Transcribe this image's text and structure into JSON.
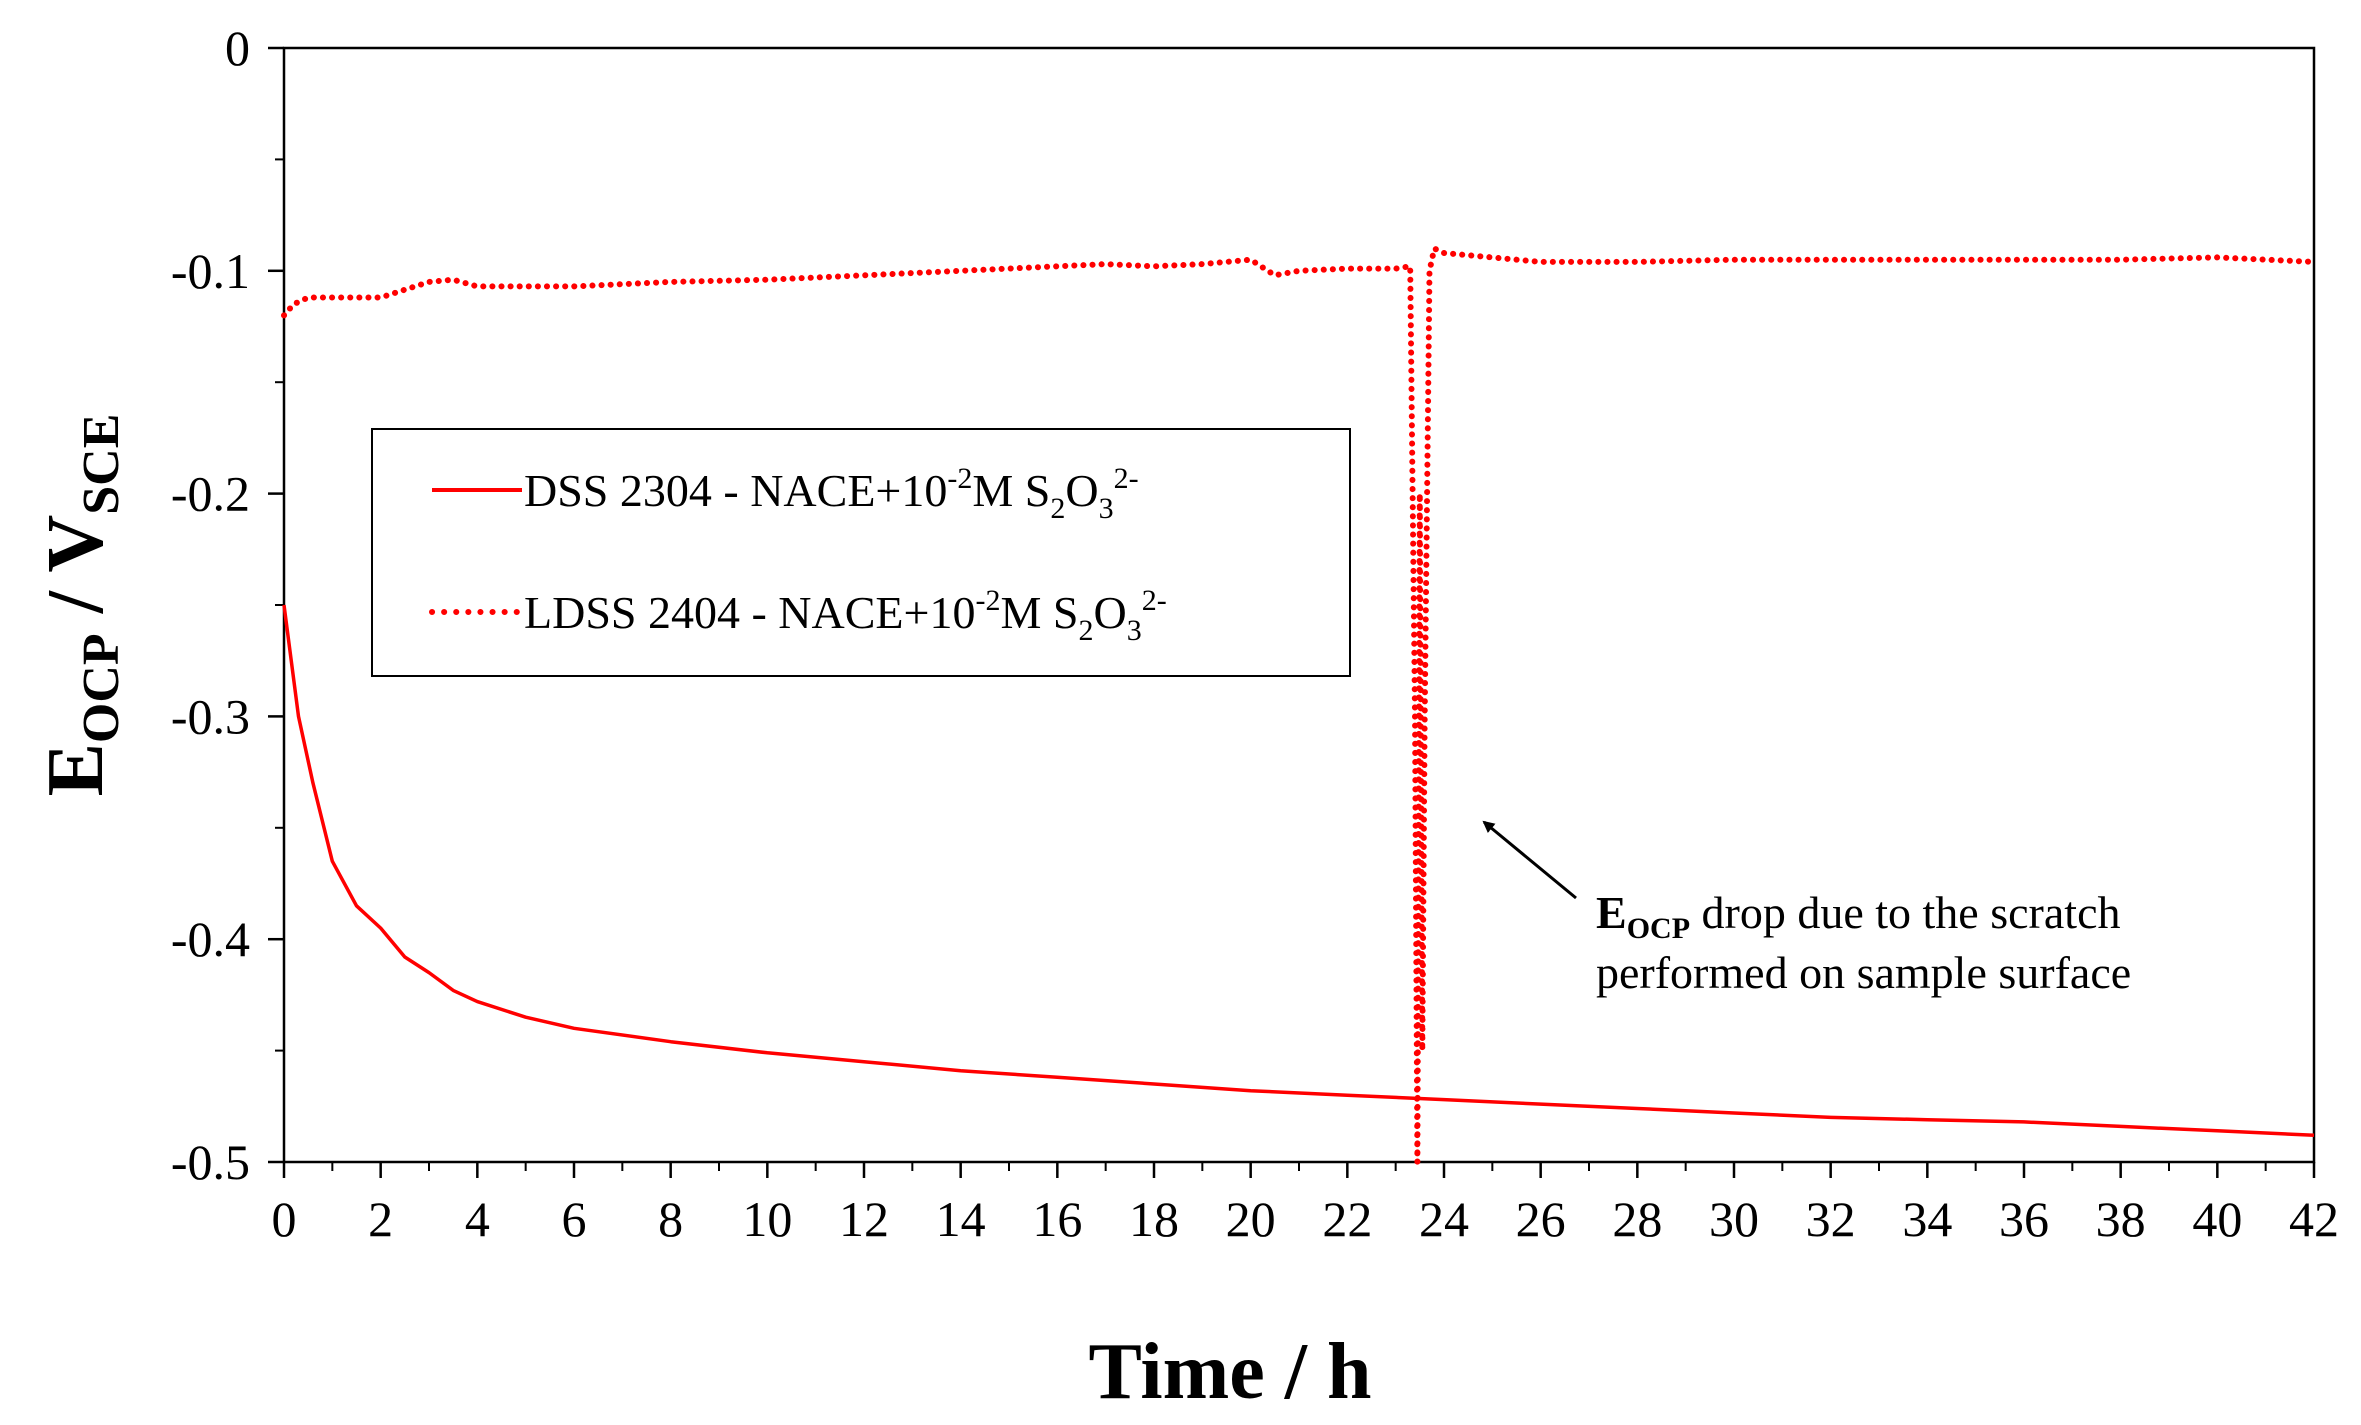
{
  "chart_data": {
    "type": "line",
    "title": "",
    "xlabel": "Time / h",
    "ylabel": {
      "main": "E",
      "sub1": "OCP",
      "mid": " / V",
      "sub2": "SCE"
    },
    "xlim": [
      0,
      42
    ],
    "ylim": [
      -0.5,
      0
    ],
    "x_ticks": [
      0,
      2,
      4,
      6,
      8,
      10,
      12,
      14,
      16,
      18,
      20,
      22,
      24,
      26,
      28,
      30,
      32,
      34,
      36,
      38,
      40,
      42
    ],
    "y_ticks": [
      0,
      -0.1,
      -0.2,
      -0.3,
      -0.4,
      -0.5
    ],
    "y_tick_labels": [
      "0",
      "-0.1",
      "-0.2",
      "-0.3",
      "-0.4",
      "-0.5"
    ],
    "grid": false,
    "series": [
      {
        "name": "DSS 2304 - NACE+10-2M S2O32-",
        "legend": {
          "p1": "DSS 2304 - NACE+10",
          "sup1": "-2",
          "p2": "M  S",
          "sub": "2",
          "p3": "O",
          "sub2": "3",
          "sup2": "2-"
        },
        "style": "solid",
        "color": "#ff0000",
        "x": [
          0,
          0.3,
          0.6,
          1.0,
          1.5,
          2.0,
          2.5,
          3.0,
          3.5,
          4.0,
          5.0,
          6.0,
          8.0,
          10.0,
          12.0,
          14.0,
          16.0,
          18.0,
          20.0,
          22.0,
          24.0,
          26.0,
          28.0,
          30.0,
          32.0,
          34.0,
          36.0,
          38.0,
          40.0,
          42.0
        ],
        "y": [
          -0.25,
          -0.3,
          -0.33,
          -0.365,
          -0.385,
          -0.395,
          -0.408,
          -0.415,
          -0.423,
          -0.428,
          -0.435,
          -0.44,
          -0.446,
          -0.451,
          -0.455,
          -0.459,
          -0.462,
          -0.465,
          -0.468,
          -0.47,
          -0.472,
          -0.474,
          -0.476,
          -0.478,
          -0.48,
          -0.481,
          -0.482,
          -0.484,
          -0.486,
          -0.488
        ]
      },
      {
        "name": "LDSS 2404 - NACE+10-2M S2O32-",
        "legend": {
          "p1": "LDSS 2404 - NACE+10",
          "sup1": "-2",
          "p2": "M  S",
          "sub": "2",
          "p3": "O",
          "sub2": "3",
          "sup2": "2-"
        },
        "style": "dotted",
        "color": "#ff0000",
        "x": [
          0,
          0.2,
          0.5,
          1.0,
          2.0,
          3.0,
          3.5,
          4.0,
          6.0,
          8.0,
          10.0,
          12.0,
          14.0,
          16.0,
          17.0,
          18.0,
          19.0,
          20.0,
          20.5,
          21.0,
          22.0,
          23.0,
          23.3,
          23.4,
          23.45,
          23.5,
          23.55,
          23.6,
          23.7,
          23.8,
          24.0,
          26.0,
          28.0,
          30.0,
          32.0,
          34.0,
          36.0,
          38.0,
          40.0,
          42.0
        ],
        "y": [
          -0.12,
          -0.115,
          -0.112,
          -0.112,
          -0.112,
          -0.105,
          -0.104,
          -0.107,
          -0.107,
          -0.105,
          -0.104,
          -0.102,
          -0.1,
          -0.098,
          -0.097,
          -0.098,
          -0.097,
          -0.095,
          -0.102,
          -0.1,
          -0.099,
          -0.099,
          -0.098,
          -0.3,
          -0.5,
          -0.2,
          -0.45,
          -0.3,
          -0.1,
          -0.09,
          -0.092,
          -0.096,
          -0.096,
          -0.095,
          -0.095,
          -0.095,
          -0.095,
          -0.095,
          -0.094,
          -0.096
        ]
      }
    ],
    "annotation": {
      "line1_main": "E",
      "line1_sub": "OCP",
      "line1_rest": " drop due to the scratch",
      "line2": "performed on sample surface",
      "points_to": {
        "x": 24.5,
        "y": -0.35
      }
    }
  }
}
